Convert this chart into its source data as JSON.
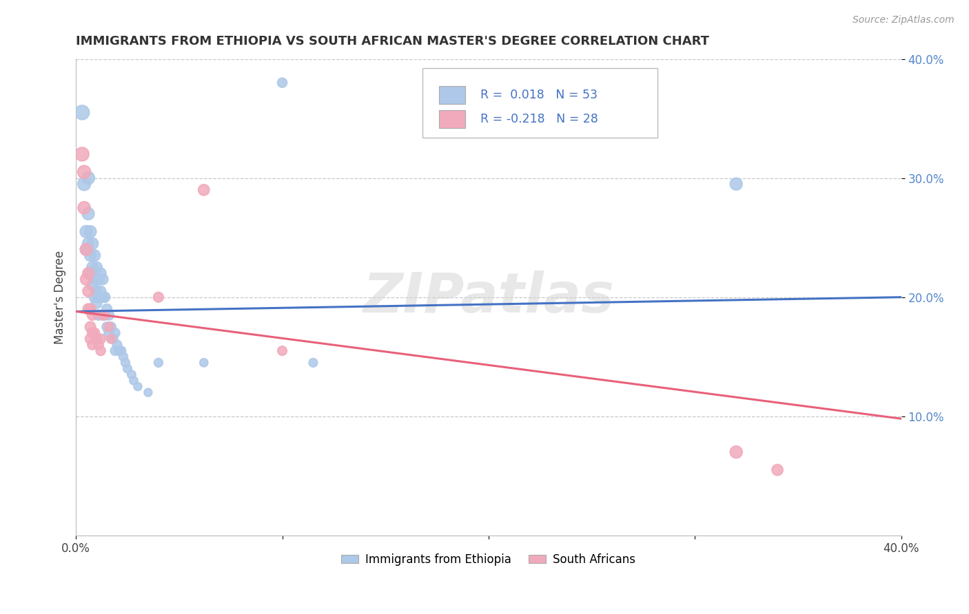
{
  "title": "IMMIGRANTS FROM ETHIOPIA VS SOUTH AFRICAN MASTER'S DEGREE CORRELATION CHART",
  "source": "Source: ZipAtlas.com",
  "ylabel": "Master's Degree",
  "legend_label1": "Immigrants from Ethiopia",
  "legend_label2": "South Africans",
  "r1": 0.018,
  "n1": 53,
  "r2": -0.218,
  "n2": 28,
  "xlim": [
    0.0,
    0.4
  ],
  "ylim": [
    0.0,
    0.4
  ],
  "color_blue": "#adc8e8",
  "color_pink": "#f0aabb",
  "line_blue": "#4472c4",
  "line_pink": "#e8607a",
  "bg_color": "#ffffff",
  "grid_color": "#c8c8c8",
  "blue_trend_start": 0.188,
  "blue_trend_end": 0.2,
  "pink_trend_start": 0.188,
  "pink_trend_end": 0.098,
  "blue_points": [
    [
      0.003,
      0.355
    ],
    [
      0.004,
      0.295
    ],
    [
      0.005,
      0.255
    ],
    [
      0.005,
      0.24
    ],
    [
      0.006,
      0.3
    ],
    [
      0.006,
      0.27
    ],
    [
      0.006,
      0.245
    ],
    [
      0.007,
      0.255
    ],
    [
      0.007,
      0.235
    ],
    [
      0.007,
      0.22
    ],
    [
      0.008,
      0.245
    ],
    [
      0.008,
      0.225
    ],
    [
      0.008,
      0.21
    ],
    [
      0.009,
      0.235
    ],
    [
      0.009,
      0.215
    ],
    [
      0.009,
      0.2
    ],
    [
      0.01,
      0.225
    ],
    [
      0.01,
      0.205
    ],
    [
      0.01,
      0.215
    ],
    [
      0.01,
      0.195
    ],
    [
      0.011,
      0.215
    ],
    [
      0.011,
      0.2
    ],
    [
      0.011,
      0.185
    ],
    [
      0.012,
      0.22
    ],
    [
      0.012,
      0.205
    ],
    [
      0.013,
      0.215
    ],
    [
      0.013,
      0.2
    ],
    [
      0.013,
      0.185
    ],
    [
      0.014,
      0.2
    ],
    [
      0.014,
      0.185
    ],
    [
      0.015,
      0.19
    ],
    [
      0.015,
      0.175
    ],
    [
      0.016,
      0.185
    ],
    [
      0.016,
      0.17
    ],
    [
      0.017,
      0.175
    ],
    [
      0.018,
      0.165
    ],
    [
      0.019,
      0.17
    ],
    [
      0.019,
      0.155
    ],
    [
      0.02,
      0.16
    ],
    [
      0.021,
      0.155
    ],
    [
      0.022,
      0.155
    ],
    [
      0.023,
      0.15
    ],
    [
      0.024,
      0.145
    ],
    [
      0.025,
      0.14
    ],
    [
      0.027,
      0.135
    ],
    [
      0.028,
      0.13
    ],
    [
      0.03,
      0.125
    ],
    [
      0.035,
      0.12
    ],
    [
      0.04,
      0.145
    ],
    [
      0.062,
      0.145
    ],
    [
      0.1,
      0.38
    ],
    [
      0.115,
      0.145
    ],
    [
      0.32,
      0.295
    ]
  ],
  "pink_points": [
    [
      0.003,
      0.32
    ],
    [
      0.004,
      0.305
    ],
    [
      0.004,
      0.275
    ],
    [
      0.005,
      0.24
    ],
    [
      0.005,
      0.215
    ],
    [
      0.006,
      0.22
    ],
    [
      0.006,
      0.205
    ],
    [
      0.006,
      0.19
    ],
    [
      0.007,
      0.19
    ],
    [
      0.007,
      0.175
    ],
    [
      0.007,
      0.165
    ],
    [
      0.008,
      0.185
    ],
    [
      0.008,
      0.17
    ],
    [
      0.008,
      0.16
    ],
    [
      0.009,
      0.17
    ],
    [
      0.01,
      0.165
    ],
    [
      0.011,
      0.16
    ],
    [
      0.012,
      0.165
    ],
    [
      0.012,
      0.155
    ],
    [
      0.013,
      0.185
    ],
    [
      0.014,
      0.185
    ],
    [
      0.016,
      0.175
    ],
    [
      0.017,
      0.165
    ],
    [
      0.04,
      0.2
    ],
    [
      0.062,
      0.29
    ],
    [
      0.32,
      0.07
    ],
    [
      0.34,
      0.055
    ],
    [
      0.1,
      0.155
    ]
  ],
  "blue_sizes": [
    220,
    180,
    160,
    150,
    170,
    155,
    145,
    150,
    140,
    130,
    145,
    135,
    125,
    140,
    130,
    120,
    135,
    125,
    130,
    120,
    130,
    120,
    110,
    125,
    115,
    120,
    110,
    105,
    115,
    105,
    110,
    100,
    105,
    100,
    100,
    95,
    95,
    90,
    90,
    88,
    85,
    82,
    80,
    78,
    75,
    72,
    70,
    68,
    80,
    72,
    95,
    78,
    160
  ],
  "pink_sizes": [
    200,
    185,
    165,
    155,
    145,
    140,
    130,
    125,
    125,
    118,
    112,
    115,
    108,
    102,
    108,
    105,
    100,
    100,
    95,
    100,
    95,
    90,
    88,
    105,
    130,
    160,
    130,
    90
  ]
}
